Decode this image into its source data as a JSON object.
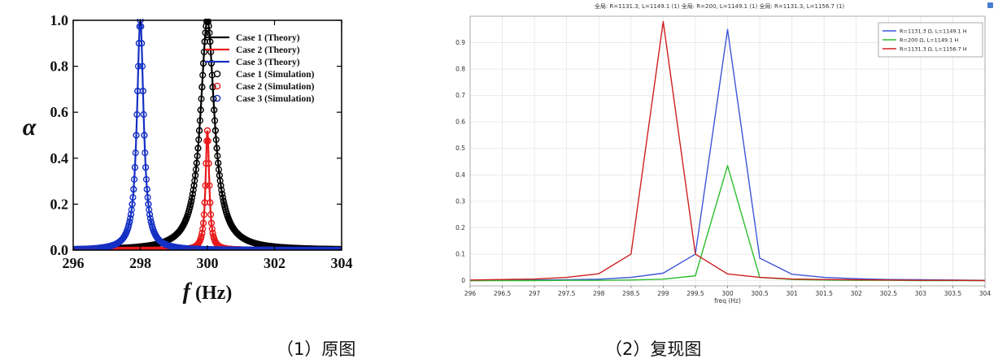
{
  "captions": {
    "left": "（1）原图",
    "right": "（2）复现图"
  },
  "chart_data": [
    {
      "type": "line",
      "id": "original",
      "xlabel": "f (Hz)",
      "xlabel_italic_part": "f",
      "xlabel_unit_part": " (Hz)",
      "ylabel": "α",
      "xlim": [
        296,
        304
      ],
      "ylim": [
        0,
        1.0
      ],
      "x_ticks": [
        "296",
        "298",
        "300",
        "302",
        "304"
      ],
      "y_ticks": [
        "0.0",
        "0.2",
        "0.4",
        "0.6",
        "0.8",
        "1.0"
      ],
      "legend_position": "top-right",
      "series": [
        {
          "name": "Case 1 (Theory)",
          "color": "#000000",
          "style": "line",
          "f0": 300,
          "gamma": 0.25,
          "peak": 1.0
        },
        {
          "name": "Case 2 (Theory)",
          "color": "#e8191b",
          "style": "line",
          "f0": 300,
          "gamma": 0.065,
          "peak": 0.52
        },
        {
          "name": "Case 3 (Theory)",
          "color": "#1530c4",
          "style": "line",
          "f0": 298,
          "gamma": 0.12,
          "peak": 1.0
        },
        {
          "name": "Case 1 (Simulation)",
          "color": "#000000",
          "style": "marker",
          "f0": 300,
          "gamma": 0.25,
          "peak": 1.0
        },
        {
          "name": "Case 2 (Simulation)",
          "color": "#e8191b",
          "style": "marker",
          "f0": 300,
          "gamma": 0.065,
          "peak": 0.52
        },
        {
          "name": "Case 3 (Simulation)",
          "color": "#1530c4",
          "style": "marker",
          "f0": 298,
          "gamma": 0.12,
          "peak": 1.0
        }
      ]
    },
    {
      "type": "line",
      "id": "reproduction",
      "title": "全局: R=1131.3, L=1149.1 (1) 全局: R=200, L=1149.1 (1) 全局: R=1131.3, L=1156.7 (1)",
      "xlabel": "freq (Hz)",
      "xlim": [
        296,
        304
      ],
      "ylim": [
        -0.02,
        1.0
      ],
      "x_ticks": [
        "296",
        "296.5",
        "297",
        "297.5",
        "298",
        "298.5",
        "299",
        "299.5",
        "300",
        "300.5",
        "301",
        "301.5",
        "302",
        "302.5",
        "303",
        "303.5",
        "304"
      ],
      "y_ticks": [
        "0",
        "0.1",
        "0.2",
        "0.3",
        "0.4",
        "0.5",
        "0.6",
        "0.7",
        "0.8",
        "0.9"
      ],
      "legend_position": "top-right",
      "grid": true,
      "x": [
        296,
        296.5,
        297,
        297.5,
        298,
        298.5,
        299,
        299.5,
        300,
        300.5,
        301,
        301.5,
        302,
        302.5,
        303,
        303.5,
        304
      ],
      "series": [
        {
          "name": "R=1131.3 Ω, L=1149.1 H",
          "color": "#3c55d8",
          "values": [
            0.0,
            0.001,
            0.002,
            0.003,
            0.005,
            0.012,
            0.028,
            0.1,
            0.95,
            0.085,
            0.024,
            0.012,
            0.007,
            0.004,
            0.003,
            0.002,
            0.001
          ]
        },
        {
          "name": "R=200 Ω, L=1149.1 H",
          "color": "#2dbd2d",
          "values": [
            0.0,
            0.0,
            0.0,
            0.001,
            0.001,
            0.002,
            0.005,
            0.018,
            0.435,
            0.012,
            0.004,
            0.002,
            0.001,
            0.001,
            0.0,
            0.0,
            0.0
          ]
        },
        {
          "name": "R=1131.3 Ω, L=1156.7 H",
          "color": "#cc2020",
          "values": [
            0.002,
            0.004,
            0.006,
            0.012,
            0.026,
            0.1,
            0.98,
            0.1,
            0.025,
            0.012,
            0.006,
            0.004,
            0.003,
            0.002,
            0.001,
            0.001,
            0.0
          ]
        }
      ]
    }
  ]
}
